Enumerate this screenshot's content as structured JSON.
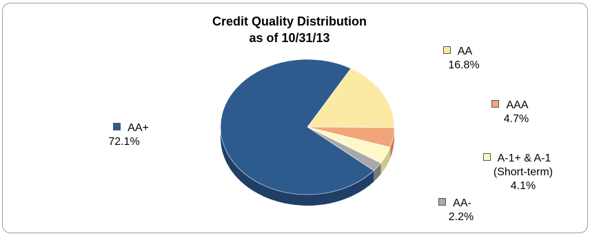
{
  "chart_data": {
    "type": "pie",
    "title": "Credit Quality Distribution",
    "subtitle": "as of 10/31/13",
    "slices": [
      {
        "name": "AA+",
        "name_lines": [
          "AA+"
        ],
        "value": 72.1,
        "label": "72.1%",
        "color": "#2e5b8e",
        "side": "#1f3f66"
      },
      {
        "name": "AA",
        "name_lines": [
          "AA"
        ],
        "value": 16.8,
        "label": "16.8%",
        "color": "#fbeaa3",
        "side": "#c9b56a"
      },
      {
        "name": "AAA",
        "name_lines": [
          "AAA"
        ],
        "value": 4.7,
        "label": "4.7%",
        "color": "#f3a57a",
        "side": "#c57b52"
      },
      {
        "name": "A-1+ & A-1 (Short-term)",
        "name_lines": [
          "A-1+ & A-1",
          "(Short-term)"
        ],
        "value": 4.1,
        "label": "4.1%",
        "color": "#fdf8c9",
        "side": "#cfc78c"
      },
      {
        "name": "AA-",
        "name_lines": [
          "AA-"
        ],
        "value": 2.2,
        "label": "2.2%",
        "color": "#a9a9a9",
        "side": "#7a7a7a"
      }
    ]
  }
}
